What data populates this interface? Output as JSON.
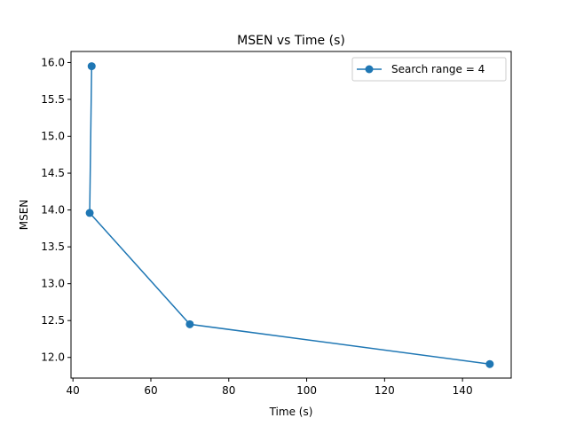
{
  "chart_data": {
    "type": "line",
    "title": "MSEN vs Time (s)",
    "xlabel": "Time (s)",
    "ylabel": "MSEN",
    "xlim": [
      39.5,
      152.5
    ],
    "ylim": [
      11.72,
      16.15
    ],
    "xticks": [
      40,
      60,
      80,
      100,
      120,
      140
    ],
    "yticks": [
      12.0,
      12.5,
      13.0,
      13.5,
      14.0,
      14.5,
      15.0,
      15.5,
      16.0
    ],
    "grid": false,
    "legend_position": "top-right",
    "series": [
      {
        "name": "Search range = 4",
        "color": "#1f77b4",
        "marker": "circle",
        "x": [
          44.8,
          44.3,
          70.0,
          147.0
        ],
        "y": [
          15.95,
          13.96,
          12.45,
          11.91
        ]
      }
    ]
  }
}
